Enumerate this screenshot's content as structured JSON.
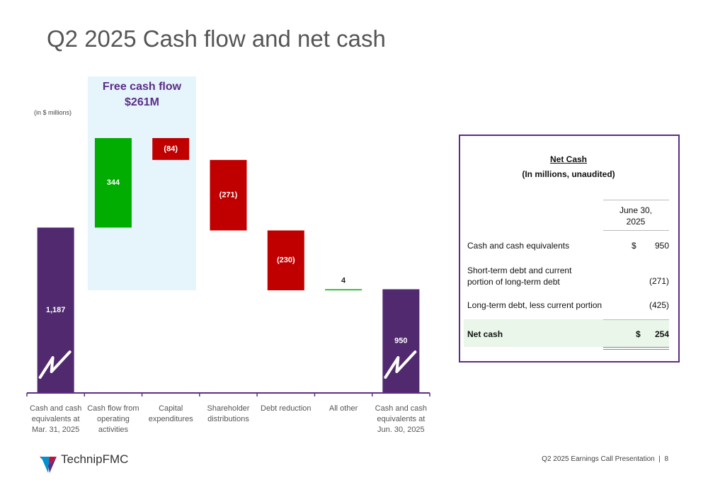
{
  "title": "Q2 2025 Cash flow and net cash",
  "chart_data": {
    "type": "waterfall",
    "unit_note": "(in $ millions)",
    "categories": [
      "Cash and cash equivalents at Mar. 31, 2025",
      "Cash flow from operating activities",
      "Capital expenditures",
      "Shareholder distributions",
      "Debt reduction",
      "All other",
      "Cash and cash equivalents at Jun. 30, 2025"
    ],
    "values": [
      1187,
      344,
      -84,
      -271,
      -230,
      4,
      950
    ],
    "value_labels": [
      "1,187",
      "344",
      "(84)",
      "(271)",
      "(230)",
      "4",
      "950"
    ],
    "measure": [
      "absolute",
      "relative",
      "relative",
      "relative",
      "relative",
      "relative",
      "absolute"
    ],
    "colors": {
      "total": "#50296e",
      "increase": "#00ad00",
      "decrease": "#c00000"
    },
    "annotation": {
      "title": "Free cash flow",
      "value": "$261M"
    }
  },
  "table": {
    "title": "Net Cash",
    "subtitle": "(In millions, unaudited)",
    "column": "June 30, 2025",
    "rows": [
      {
        "label": "Cash and cash equivalents",
        "currency": "$",
        "value": "950"
      },
      {
        "label": "Short-term debt and current portion of long-term debt",
        "value": "(271)"
      },
      {
        "label": "Long-term debt, less current portion",
        "value": "(425)"
      },
      {
        "label": "Net cash",
        "currency": "$",
        "value": "254"
      }
    ]
  },
  "footer": {
    "text": "Q2 2025 Earnings Call Presentation",
    "page": 8
  },
  "logo": "TechnipFMC"
}
